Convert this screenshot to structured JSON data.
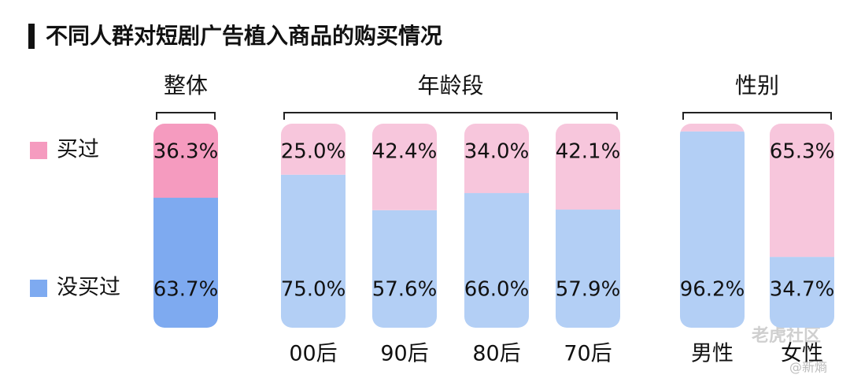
{
  "title": "不同人群对短剧广告植入商品的购买情况",
  "chart_data": [
    {
      "type": "bar",
      "stacked": true,
      "title": "整体",
      "categories": [
        null
      ],
      "ylim": [
        0,
        100
      ],
      "series": [
        {
          "name": "买过",
          "color": "#f59bbf",
          "values": [
            36.3
          ],
          "value_labels": [
            "36.3%"
          ]
        },
        {
          "name": "没买过",
          "color": "#7eaaf0",
          "values": [
            63.7
          ],
          "value_labels": [
            "63.7%"
          ]
        }
      ]
    },
    {
      "type": "bar",
      "stacked": true,
      "title": "年龄段",
      "categories": [
        "00后",
        "90后",
        "80后",
        "70后"
      ],
      "ylim": [
        0,
        100
      ],
      "series": [
        {
          "name": "买过",
          "color": "#f7c6dc",
          "values": [
            25.0,
            42.4,
            34.0,
            42.1
          ],
          "value_labels": [
            "25.0%",
            "42.4%",
            "34.0%",
            "42.1%"
          ]
        },
        {
          "name": "没买过",
          "color": "#b3cff5",
          "values": [
            75.0,
            57.6,
            66.0,
            57.9
          ],
          "value_labels": [
            "75.0%",
            "57.6%",
            "66.0%",
            "57.9%"
          ]
        }
      ]
    },
    {
      "type": "bar",
      "stacked": true,
      "title": "性别",
      "categories": [
        "男性",
        "女性"
      ],
      "ylim": [
        0,
        100
      ],
      "series": [
        {
          "name": "买过",
          "color": "#f7c6dc",
          "values": [
            3.8,
            65.3
          ],
          "value_labels": [
            null,
            "65.3%"
          ]
        },
        {
          "name": "没买过",
          "color": "#b3cff5",
          "values": [
            96.2,
            34.7
          ],
          "value_labels": [
            "96.2%",
            "34.7%"
          ]
        }
      ]
    }
  ],
  "watermarks": [
    "老虎社区",
    "@新熵"
  ]
}
